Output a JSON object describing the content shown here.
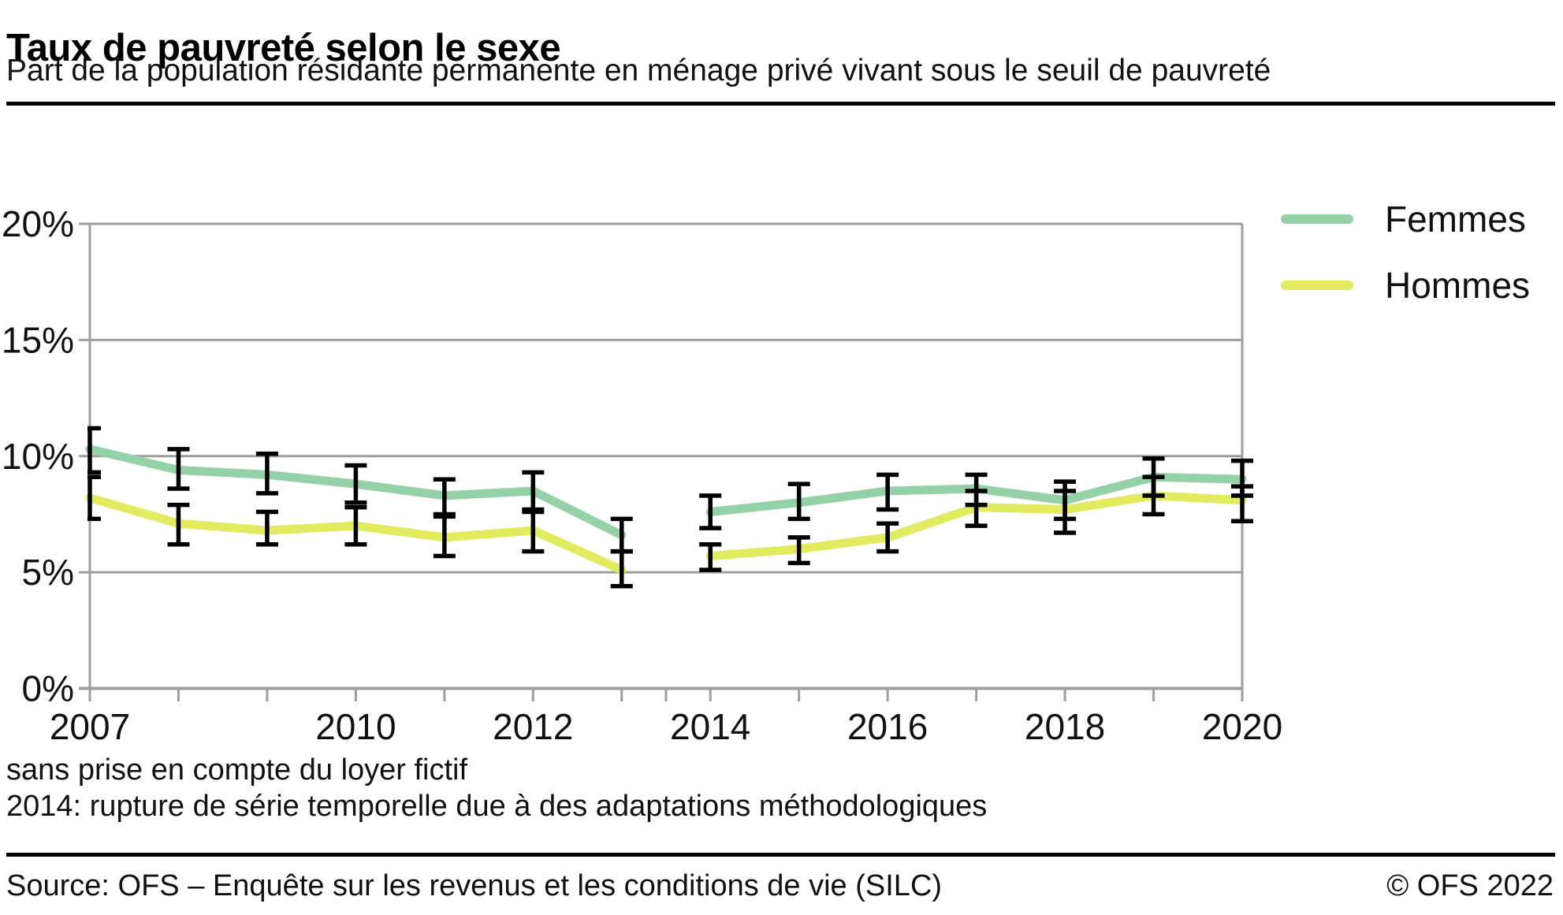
{
  "header": {
    "title": "Taux de pauvreté selon le sexe",
    "subtitle": "Part de la population résidante permanente en ménage privé vivant sous le seuil de pauvreté"
  },
  "legend": [
    {
      "label": "Femmes",
      "color": "#95d1a6"
    },
    {
      "label": "Hommes",
      "color": "#e2ea5e"
    }
  ],
  "footnotes": {
    "line1": "sans prise en compte du loyer fictif",
    "line2": "2014: rupture de série temporelle due à des adaptations méthodologiques"
  },
  "source": {
    "left": "Source: OFS – Enquête sur les revenus et les conditions de vie (SILC)",
    "right": "© OFS 2022"
  },
  "chart_data": {
    "type": "line",
    "title": "Taux de pauvreté selon le sexe",
    "xlabel": "",
    "ylabel": "",
    "x": [
      2007,
      2008,
      2009,
      2010,
      2011,
      2012,
      2013,
      2014,
      2015,
      2016,
      2017,
      2018,
      2019,
      2020
    ],
    "x_tick_labels": [
      2007,
      2010,
      2012,
      2014,
      2016,
      2018,
      2020
    ],
    "break_after": 2013,
    "break_tick_x": 2013.5,
    "ylim": [
      0,
      20
    ],
    "y_ticks": [
      0,
      5,
      10,
      15,
      20
    ],
    "y_tick_suffix": "%",
    "grid": true,
    "legend_position": "top-right",
    "axis_color": "#9e9e9e",
    "errorbar_color": "#000000",
    "series": [
      {
        "name": "Femmes",
        "color": "#95d1a6",
        "values": [
          10.3,
          9.4,
          9.2,
          8.8,
          8.3,
          8.5,
          6.6,
          7.6,
          8.0,
          8.5,
          8.6,
          8.1,
          9.1,
          9.0
        ],
        "ci_low": [
          9.3,
          8.6,
          8.4,
          8.0,
          7.5,
          7.7,
          5.9,
          6.9,
          7.3,
          7.7,
          7.9,
          7.3,
          8.3,
          8.3
        ],
        "ci_high": [
          11.2,
          10.3,
          10.1,
          9.6,
          9.0,
          9.3,
          7.3,
          8.3,
          8.8,
          9.2,
          9.2,
          8.9,
          9.9,
          9.8
        ]
      },
      {
        "name": "Hommes",
        "color": "#e2ea5e",
        "values": [
          8.2,
          7.1,
          6.8,
          7.0,
          6.5,
          6.8,
          5.1,
          5.7,
          6.0,
          6.5,
          7.8,
          7.7,
          8.3,
          8.1
        ],
        "ci_low": [
          7.3,
          6.2,
          6.2,
          6.2,
          5.7,
          5.9,
          4.4,
          5.1,
          5.4,
          5.9,
          7.0,
          6.7,
          7.5,
          7.2
        ],
        "ci_high": [
          9.1,
          7.9,
          7.6,
          7.8,
          7.4,
          7.6,
          5.9,
          6.2,
          6.5,
          7.1,
          8.5,
          8.5,
          9.1,
          8.7
        ]
      }
    ]
  }
}
